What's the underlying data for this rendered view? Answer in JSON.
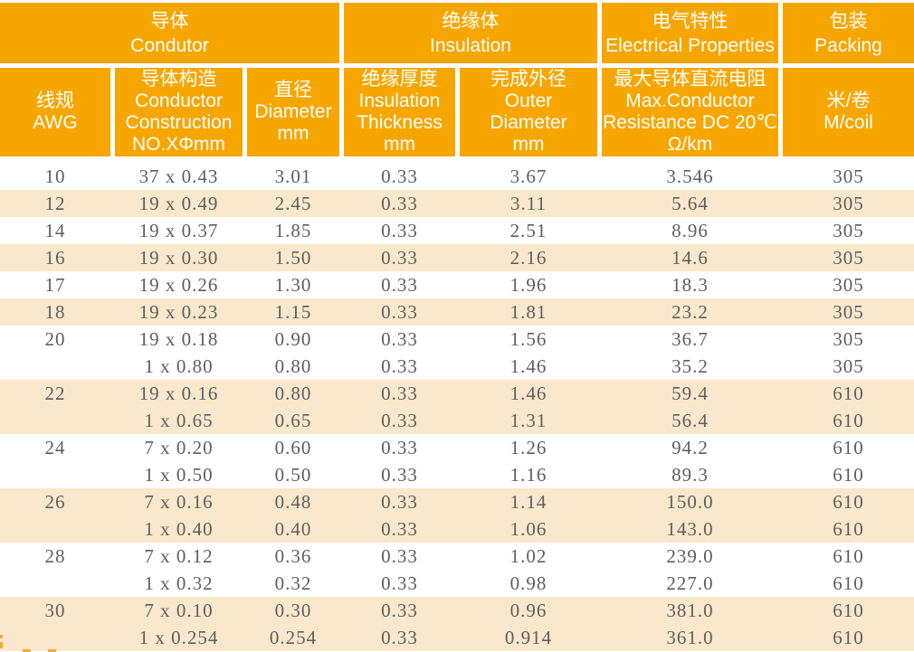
{
  "colors": {
    "header_orange": "#F7A600",
    "stripe_cream": "#FAE8CC",
    "data_text": "#5E5E5E",
    "header_text": "#FFFFFF",
    "accent_dash": "#EBAF3C"
  },
  "table": {
    "groups": [
      {
        "zh": "导体",
        "en": "Condutor"
      },
      {
        "zh": "绝缘体",
        "en": "Insulation"
      },
      {
        "zh": "电气特性",
        "en": "Electrical Properties"
      },
      {
        "zh": "包装",
        "en": "Packing"
      }
    ],
    "columns": [
      {
        "key": "awg",
        "lines": [
          "线规",
          "AWG"
        ]
      },
      {
        "key": "construction",
        "lines": [
          "导体构造",
          "Conductor",
          "Construction",
          "NO.XΦmm"
        ]
      },
      {
        "key": "diameter",
        "lines": [
          "直径",
          "Diameter",
          "mm"
        ]
      },
      {
        "key": "insulation_thickness",
        "lines": [
          "绝缘厚度",
          "Insulation",
          "Thickness",
          "mm"
        ]
      },
      {
        "key": "outer_diameter",
        "lines": [
          "完成外径",
          "Outer",
          "Diameter",
          "mm"
        ]
      },
      {
        "key": "resistance",
        "lines": [
          "最大导体直流电阻",
          "Max.Conductor",
          "Resistance DC 20℃",
          "Ω/km"
        ]
      },
      {
        "key": "packing",
        "lines": [
          "米/卷",
          "M/coil"
        ]
      }
    ],
    "rows": [
      {
        "awg": "10",
        "construction": "37 x 0.43",
        "diameter": "3.01",
        "insulation_thickness": "0.33",
        "outer_diameter": "3.67",
        "resistance": "3.546",
        "packing": "305",
        "stripe": "white"
      },
      {
        "awg": "12",
        "construction": "19 x 0.49",
        "diameter": "2.45",
        "insulation_thickness": "0.33",
        "outer_diameter": "3.11",
        "resistance": "5.64",
        "packing": "305",
        "stripe": "cream"
      },
      {
        "awg": "14",
        "construction": "19 x 0.37",
        "diameter": "1.85",
        "insulation_thickness": "0.33",
        "outer_diameter": "2.51",
        "resistance": "8.96",
        "packing": "305",
        "stripe": "white"
      },
      {
        "awg": "16",
        "construction": "19 x 0.30",
        "diameter": "1.50",
        "insulation_thickness": "0.33",
        "outer_diameter": "2.16",
        "resistance": "14.6",
        "packing": "305",
        "stripe": "cream"
      },
      {
        "awg": "17",
        "construction": "19 x 0.26",
        "diameter": "1.30",
        "insulation_thickness": "0.33",
        "outer_diameter": "1.96",
        "resistance": "18.3",
        "packing": "305",
        "stripe": "white"
      },
      {
        "awg": "18",
        "construction": "19 x 0.23",
        "diameter": "1.15",
        "insulation_thickness": "0.33",
        "outer_diameter": "1.81",
        "resistance": "23.2",
        "packing": "305",
        "stripe": "cream"
      },
      {
        "awg": "20",
        "construction": "19 x 0.18",
        "diameter": "0.90",
        "insulation_thickness": "0.33",
        "outer_diameter": "1.56",
        "resistance": "36.7",
        "packing": "305",
        "stripe": "white"
      },
      {
        "awg": "",
        "construction": "1 x 0.80",
        "diameter": "0.80",
        "insulation_thickness": "0.33",
        "outer_diameter": "1.46",
        "resistance": "35.2",
        "packing": "305",
        "stripe": "white"
      },
      {
        "awg": "22",
        "construction": "19 x 0.16",
        "diameter": "0.80",
        "insulation_thickness": "0.33",
        "outer_diameter": "1.46",
        "resistance": "59.4",
        "packing": "610",
        "stripe": "cream"
      },
      {
        "awg": "",
        "construction": "1 x 0.65",
        "diameter": "0.65",
        "insulation_thickness": "0.33",
        "outer_diameter": "1.31",
        "resistance": "56.4",
        "packing": "610",
        "stripe": "cream"
      },
      {
        "awg": "24",
        "construction": "7 x 0.20",
        "diameter": "0.60",
        "insulation_thickness": "0.33",
        "outer_diameter": "1.26",
        "resistance": "94.2",
        "packing": "610",
        "stripe": "white"
      },
      {
        "awg": "",
        "construction": "1 x 0.50",
        "diameter": "0.50",
        "insulation_thickness": "0.33",
        "outer_diameter": "1.16",
        "resistance": "89.3",
        "packing": "610",
        "stripe": "white"
      },
      {
        "awg": "26",
        "construction": "7 x 0.16",
        "diameter": "0.48",
        "insulation_thickness": "0.33",
        "outer_diameter": "1.14",
        "resistance": "150.0",
        "packing": "610",
        "stripe": "cream"
      },
      {
        "awg": "",
        "construction": "1 x 0.40",
        "diameter": "0.40",
        "insulation_thickness": "0.33",
        "outer_diameter": "1.06",
        "resistance": "143.0",
        "packing": "610",
        "stripe": "cream"
      },
      {
        "awg": "28",
        "construction": "7 x 0.12",
        "diameter": "0.36",
        "insulation_thickness": "0.33",
        "outer_diameter": "1.02",
        "resistance": "239.0",
        "packing": "610",
        "stripe": "white"
      },
      {
        "awg": "",
        "construction": "1 x 0.32",
        "diameter": "0.32",
        "insulation_thickness": "0.33",
        "outer_diameter": "0.98",
        "resistance": "227.0",
        "packing": "610",
        "stripe": "white"
      },
      {
        "awg": "30",
        "construction": "7 x 0.10",
        "diameter": "0.30",
        "insulation_thickness": "0.33",
        "outer_diameter": "0.96",
        "resistance": "381.0",
        "packing": "610",
        "stripe": "cream"
      },
      {
        "awg": "",
        "construction": "1 x 0.254",
        "diameter": "0.254",
        "insulation_thickness": "0.33",
        "outer_diameter": "0.914",
        "resistance": "361.0",
        "packing": "610",
        "stripe": "cream"
      }
    ]
  }
}
